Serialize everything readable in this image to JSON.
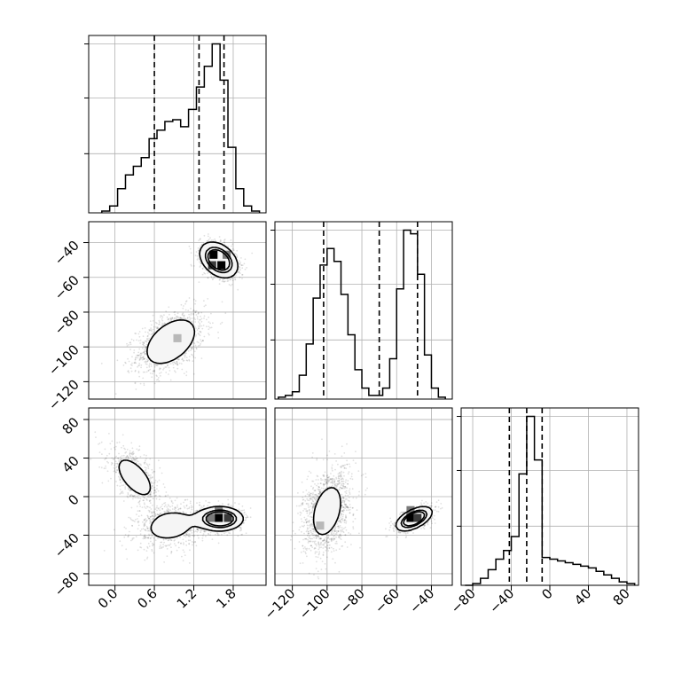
{
  "chart_data": {
    "type": "corner",
    "title": "",
    "parameters": [
      {
        "name": "",
        "range": [
          -0.4,
          2.3
        ],
        "ticks": [
          0.0,
          0.6,
          1.2,
          1.8
        ],
        "tick_labels": [
          "0.0",
          "0.6",
          "1.2",
          "1.8"
        ],
        "quantiles": [
          0.6,
          1.28,
          1.66
        ],
        "histogram": {
          "bin_width": 0.12,
          "bin_starts": [
            -0.2,
            -0.08,
            0.04,
            0.16,
            0.28,
            0.4,
            0.52,
            0.64,
            0.76,
            0.88,
            1.0,
            1.12,
            1.24,
            1.36,
            1.48,
            1.6,
            1.72,
            1.84,
            1.96,
            2.08
          ],
          "counts": [
            1,
            4,
            14,
            22,
            27,
            32,
            43,
            48,
            53,
            54,
            50,
            60,
            73,
            85,
            98,
            77,
            38,
            14,
            4,
            1
          ]
        }
      },
      {
        "name": "",
        "range": [
          -130,
          -28
        ],
        "ticks": [
          -120,
          -100,
          -80,
          -60,
          -40
        ],
        "tick_labels": [
          "−120",
          "−100",
          "−80",
          "−60",
          "−40"
        ],
        "quantiles": [
          -102,
          -70,
          -48
        ],
        "histogram": {
          "bin_width": 4,
          "bin_starts": [
            -128,
            -124,
            -120,
            -116,
            -112,
            -108,
            -104,
            -100,
            -96,
            -92,
            -88,
            -84,
            -80,
            -76,
            -72,
            -68,
            -64,
            -60,
            -56,
            -52,
            -48,
            -44,
            -40,
            -36
          ],
          "counts": [
            1,
            2,
            4,
            13,
            30,
            55,
            73,
            82,
            75,
            57,
            35,
            16,
            6,
            2,
            2,
            6,
            22,
            60,
            92,
            90,
            68,
            24,
            6,
            1
          ]
        }
      },
      {
        "name": "",
        "range": [
          -92,
          92
        ],
        "ticks": [
          -80,
          -40,
          0,
          40,
          80
        ],
        "tick_labels": [
          "−80",
          "−40",
          "0",
          "40",
          "80"
        ],
        "quantiles": [
          -42,
          -24,
          -8
        ],
        "histogram": {
          "bin_width": 8,
          "bin_starts": [
            -88,
            -80,
            -72,
            -64,
            -56,
            -48,
            -40,
            -32,
            -24,
            -16,
            -8,
            0,
            8,
            16,
            24,
            32,
            40,
            48,
            56,
            64,
            72,
            80
          ],
          "counts": [
            0,
            1,
            4,
            9,
            15,
            20,
            28,
            64,
            97,
            72,
            16,
            15,
            14,
            13,
            12,
            11,
            10,
            8,
            6,
            4,
            2,
            1
          ]
        }
      }
    ],
    "pairs": [
      {
        "x_param": 0,
        "y_param": 1,
        "modes": [
          {
            "mean": [
              0.85,
              -97
            ],
            "sd": [
              0.26,
              9
            ],
            "rho": 0.45,
            "weight": 0.5
          },
          {
            "mean": [
              1.58,
              -50
            ],
            "sd": [
              0.14,
              5
            ],
            "rho": -0.35,
            "weight": 0.5
          }
        ],
        "peak_cells": [
          [
            1.5,
            -47,
            4
          ],
          [
            1.62,
            -53,
            4
          ],
          [
            1.48,
            -53,
            3
          ],
          [
            1.7,
            -47,
            2
          ],
          [
            0.95,
            -95,
            1
          ]
        ]
      },
      {
        "x_param": 0,
        "y_param": 2,
        "modes": [
          {
            "mean": [
              0.3,
              20
            ],
            "sd": [
              0.2,
              15
            ],
            "rho": -0.6,
            "weight": 0.25
          },
          {
            "mean": [
              0.85,
              -30
            ],
            "sd": [
              0.28,
              12
            ],
            "rho": 0.2,
            "weight": 0.3
          },
          {
            "mean": [
              1.6,
              -23
            ],
            "sd": [
              0.17,
              6
            ],
            "rho": 0.0,
            "weight": 0.45
          }
        ],
        "peak_cells": [
          [
            1.58,
            -22,
            4
          ],
          [
            1.72,
            -22,
            3
          ],
          [
            1.58,
            -14,
            2
          ],
          [
            1.46,
            -22,
            2
          ]
        ]
      },
      {
        "x_param": 1,
        "y_param": 2,
        "modes": [
          {
            "mean": [
              -100,
              -15
            ],
            "sd": [
              7,
              22
            ],
            "rho": 0.35,
            "weight": 0.55
          },
          {
            "mean": [
              -50,
              -23
            ],
            "sd": [
              5,
              6
            ],
            "rho": 0.55,
            "weight": 0.45
          }
        ],
        "peak_cells": [
          [
            -52,
            -22,
            4
          ],
          [
            -48,
            -22,
            3
          ],
          [
            -52,
            -14,
            2
          ],
          [
            -104,
            -30,
            1
          ]
        ]
      }
    ],
    "contour_levels": [
      0.5,
      0.35,
      0.12
    ],
    "colors": {
      "line": "#000000",
      "grid": "#b0b0b0",
      "background": "#ffffff",
      "points": "#000000"
    },
    "grid": true,
    "legend": "none"
  }
}
